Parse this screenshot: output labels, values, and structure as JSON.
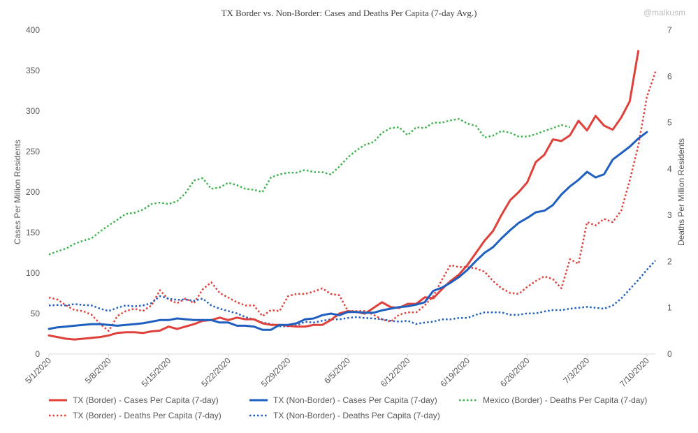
{
  "chart_data": {
    "type": "line",
    "title": "TX Border  vs. Non-Border:  Cases and Deaths Per Capita  (7-day  Avg.)",
    "watermark": "@malkusm",
    "x": [
      "5/1/2020",
      "5/2/2020",
      "5/3/2020",
      "5/4/2020",
      "5/5/2020",
      "5/6/2020",
      "5/7/2020",
      "5/8/2020",
      "5/9/2020",
      "5/10/2020",
      "5/11/2020",
      "5/12/2020",
      "5/13/2020",
      "5/14/2020",
      "5/15/2020",
      "5/16/2020",
      "5/17/2020",
      "5/18/2020",
      "5/19/2020",
      "5/20/2020",
      "5/21/2020",
      "5/22/2020",
      "5/23/2020",
      "5/24/2020",
      "5/25/2020",
      "5/26/2020",
      "5/27/2020",
      "5/28/2020",
      "5/29/2020",
      "5/30/2020",
      "5/31/2020",
      "6/1/2020",
      "6/2/2020",
      "6/3/2020",
      "6/4/2020",
      "6/5/2020",
      "6/6/2020",
      "6/7/2020",
      "6/8/2020",
      "6/9/2020",
      "6/10/2020",
      "6/11/2020",
      "6/12/2020",
      "6/13/2020",
      "6/14/2020",
      "6/15/2020",
      "6/16/2020",
      "6/17/2020",
      "6/18/2020",
      "6/19/2020",
      "6/20/2020",
      "6/21/2020",
      "6/22/2020",
      "6/23/2020",
      "6/24/2020",
      "6/25/2020",
      "6/26/2020",
      "6/27/2020",
      "6/28/2020",
      "6/29/2020",
      "6/30/2020",
      "7/1/2020",
      "7/2/2020",
      "7/3/2020",
      "7/4/2020",
      "7/5/2020",
      "7/6/2020",
      "7/7/2020",
      "7/8/2020",
      "7/9/2020",
      "7/10/2020",
      "7/11/2020"
    ],
    "x_ticks": [
      "5/1/2020",
      "5/8/2020",
      "5/15/2020",
      "5/22/2020",
      "5/29/2020",
      "6/5/2020",
      "6/12/2020",
      "6/19/2020",
      "6/26/2020",
      "7/3/2020",
      "7/10/2020"
    ],
    "ylabel": "Cases Per Million Residents",
    "y2label": "Deaths Per Million Residents",
    "ylim": [
      0,
      400
    ],
    "y_ticks": [
      0,
      50,
      100,
      150,
      200,
      250,
      300,
      350,
      400
    ],
    "y2lim": [
      0,
      7
    ],
    "y2_ticks": [
      0,
      1,
      2,
      3,
      4,
      5,
      6,
      7
    ],
    "grid": false,
    "legend_position": "bottom",
    "series": [
      {
        "name": "TX (Border) - Cases Per Capita (7-day)",
        "axis": "left",
        "style": "solid",
        "color": "#e0403a",
        "values": [
          23,
          21,
          19,
          18,
          19,
          20,
          21,
          23,
          26,
          27,
          27,
          26,
          28,
          29,
          34,
          31,
          34,
          37,
          41,
          42,
          45,
          42,
          45,
          43,
          43,
          38,
          36,
          36,
          35,
          34,
          34,
          36,
          36,
          42,
          50,
          53,
          52,
          50,
          57,
          64,
          58,
          57,
          62,
          62,
          70,
          69,
          80,
          90,
          98,
          110,
          125,
          140,
          152,
          172,
          190,
          200,
          212,
          237,
          246,
          265,
          263,
          270,
          288,
          276,
          294,
          282,
          277,
          292,
          312,
          374,
          null,
          null
        ]
      },
      {
        "name": "TX (Non-Border) - Cases Per Capita (7-day)",
        "axis": "left",
        "style": "solid",
        "color": "#1f5fbf",
        "values": [
          31,
          33,
          34,
          35,
          36,
          37,
          37,
          36,
          35,
          36,
          37,
          38,
          40,
          42,
          42,
          44,
          43,
          42,
          42,
          42,
          39,
          39,
          35,
          35,
          34,
          30,
          30,
          36,
          36,
          38,
          43,
          44,
          48,
          50,
          48,
          52,
          52,
          51,
          51,
          54,
          56,
          58,
          59,
          61,
          64,
          78,
          82,
          88,
          95,
          104,
          115,
          125,
          132,
          143,
          153,
          162,
          168,
          175,
          177,
          184,
          197,
          207,
          215,
          225,
          218,
          222,
          240,
          248,
          256,
          266,
          274,
          null
        ]
      },
      {
        "name": "Mexico (Border) - Deaths Per Capita (7-day)",
        "axis": "right",
        "style": "dotted",
        "color": "#3cb34a",
        "values": [
          2.15,
          2.22,
          2.28,
          2.38,
          2.45,
          2.5,
          2.65,
          2.78,
          2.9,
          3.03,
          3.05,
          3.12,
          3.24,
          3.27,
          3.24,
          3.3,
          3.48,
          3.75,
          3.8,
          3.57,
          3.6,
          3.7,
          3.65,
          3.57,
          3.55,
          3.5,
          3.82,
          3.88,
          3.92,
          3.92,
          3.98,
          3.93,
          3.93,
          3.88,
          4.05,
          4.25,
          4.4,
          4.52,
          4.58,
          4.78,
          4.88,
          4.9,
          4.73,
          4.9,
          4.88,
          5.0,
          5.0,
          5.05,
          5.08,
          4.98,
          4.93,
          4.68,
          4.72,
          4.82,
          4.78,
          4.7,
          4.7,
          4.75,
          4.82,
          4.88,
          4.95,
          4.9,
          null,
          null,
          null,
          null,
          null,
          null,
          null,
          null,
          null,
          null
        ]
      },
      {
        "name": "TX (Border) - Deaths Per Capita (7-day)",
        "axis": "right",
        "style": "dotted",
        "color": "#e0403a",
        "values": [
          1.22,
          1.18,
          1.05,
          0.95,
          0.93,
          0.85,
          0.65,
          0.5,
          0.82,
          0.93,
          0.98,
          0.93,
          1.05,
          1.38,
          1.18,
          1.1,
          1.2,
          1.1,
          1.4,
          1.55,
          1.32,
          1.22,
          1.12,
          1.05,
          1.05,
          0.82,
          0.95,
          0.93,
          1.25,
          1.3,
          1.3,
          1.35,
          1.42,
          1.3,
          1.27,
          0.93,
          0.93,
          0.93,
          0.85,
          0.75,
          0.7,
          0.85,
          0.9,
          0.9,
          1.05,
          1.25,
          1.6,
          1.92,
          1.88,
          1.88,
          1.85,
          1.78,
          1.58,
          1.42,
          1.32,
          1.3,
          1.45,
          1.58,
          1.68,
          1.62,
          1.42,
          2.05,
          1.95,
          2.85,
          2.78,
          2.92,
          2.85,
          3.1,
          3.75,
          4.5,
          5.55,
          6.1
        ]
      },
      {
        "name": "TX (Non-Border) - Deaths Per Capita (7-day)",
        "axis": "right",
        "style": "dotted",
        "color": "#1f5fbf",
        "values": [
          1.05,
          1.06,
          1.05,
          1.08,
          1.06,
          1.05,
          0.98,
          0.93,
          1.0,
          1.05,
          1.03,
          1.05,
          1.1,
          1.25,
          1.2,
          1.17,
          1.18,
          1.15,
          1.2,
          1.05,
          0.98,
          0.93,
          0.88,
          0.8,
          0.75,
          0.68,
          0.65,
          0.6,
          0.6,
          0.62,
          0.7,
          0.68,
          0.72,
          0.75,
          0.75,
          0.78,
          0.8,
          0.78,
          0.77,
          0.75,
          0.72,
          0.7,
          0.72,
          0.65,
          0.68,
          0.7,
          0.75,
          0.75,
          0.78,
          0.78,
          0.85,
          0.9,
          0.9,
          0.9,
          0.85,
          0.85,
          0.88,
          0.88,
          0.92,
          0.95,
          0.95,
          0.98,
          1.0,
          1.02,
          1.0,
          0.98,
          1.05,
          1.2,
          1.4,
          1.6,
          1.82,
          2.02
        ]
      }
    ],
    "legend": [
      {
        "label": "TX (Border) - Cases Per Capita (7-day)",
        "style": "solid",
        "color": "#e0403a"
      },
      {
        "label": "TX (Non-Border) - Cases Per Capita (7-day)",
        "style": "solid",
        "color": "#1f5fbf"
      },
      {
        "label": "Mexico (Border) - Deaths Per Capita (7-day)",
        "style": "dotted",
        "color": "#3cb34a"
      },
      {
        "label": "TX (Border) - Deaths Per Capita (7-day)",
        "style": "dotted",
        "color": "#e0403a"
      },
      {
        "label": "TX (Non-Border) - Deaths Per Capita (7-day)",
        "style": "dotted",
        "color": "#1f5fbf"
      }
    ]
  }
}
